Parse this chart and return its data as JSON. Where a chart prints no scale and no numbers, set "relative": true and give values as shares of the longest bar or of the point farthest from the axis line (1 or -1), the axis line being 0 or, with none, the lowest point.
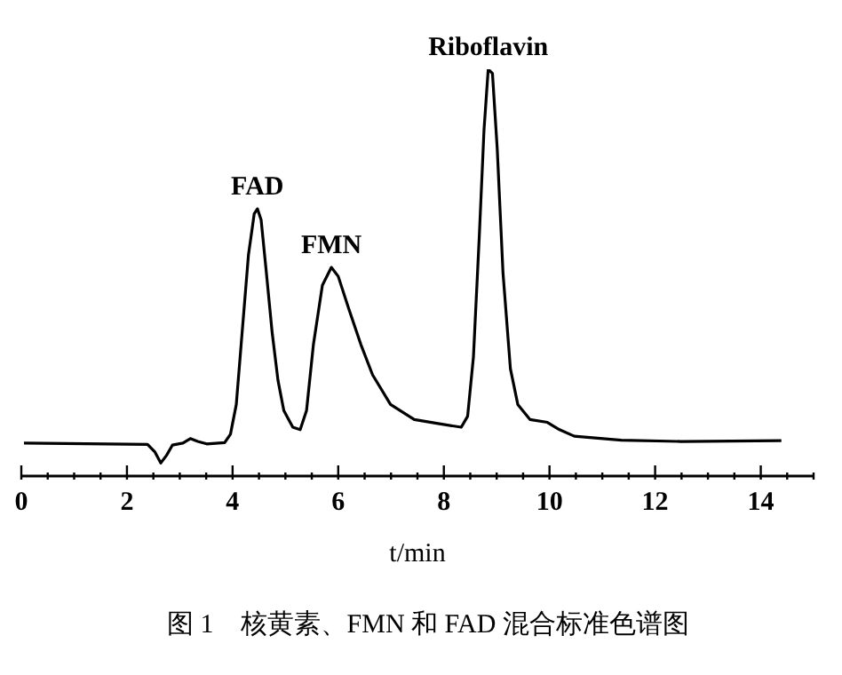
{
  "chart_data": {
    "type": "line",
    "xlabel": "t/min",
    "relative": true,
    "xlim": [
      0,
      15
    ],
    "xticks": [
      0,
      {
        "value": 0.5,
        "label": null
      },
      {
        "value": 1,
        "label": null
      },
      {
        "value": 1.5,
        "label": null
      },
      2,
      {
        "value": 2.5,
        "label": null
      },
      {
        "value": 3,
        "label": null
      },
      {
        "value": 3.5,
        "label": null
      },
      4,
      {
        "value": 4.5,
        "label": null
      },
      {
        "value": 5,
        "label": null
      },
      {
        "value": 5.5,
        "label": null
      },
      6,
      {
        "value": 6.5,
        "label": null
      },
      {
        "value": 7,
        "label": null
      },
      {
        "value": 7.5,
        "label": null
      },
      8,
      {
        "value": 8.5,
        "label": null
      },
      {
        "value": 9,
        "label": null
      },
      {
        "value": 9.5,
        "label": null
      },
      10,
      {
        "value": 10.5,
        "label": null
      },
      {
        "value": 11,
        "label": null
      },
      {
        "value": 11.5,
        "label": null
      },
      12,
      {
        "value": 12.5,
        "label": null
      },
      {
        "value": 13,
        "label": null
      },
      {
        "value": 13.5,
        "label": null
      },
      14,
      {
        "value": 14.5,
        "label": null
      },
      {
        "value": 15,
        "label": null
      }
    ],
    "x": [
      0.05,
      2.39,
      2.53,
      2.64,
      2.75,
      2.86,
      3.06,
      3.2,
      3.34,
      3.51,
      3.85,
      3.96,
      4.07,
      4.18,
      4.3,
      4.41,
      4.47,
      4.54,
      4.63,
      4.75,
      4.86,
      4.97,
      5.14,
      5.28,
      5.4,
      5.53,
      5.7,
      5.87,
      6.0,
      6.2,
      6.43,
      6.65,
      6.99,
      7.44,
      7.89,
      8.33,
      8.45,
      8.56,
      8.67,
      8.76,
      8.84,
      8.92,
      9.01,
      9.12,
      9.26,
      9.4,
      9.63,
      9.96,
      10.19,
      10.47,
      11.36,
      12.49,
      14.39
    ],
    "series": [
      {
        "color": "#000000",
        "values": [
          0.081,
          0.078,
          0.059,
          0.032,
          0.051,
          0.076,
          0.081,
          0.092,
          0.085,
          0.079,
          0.082,
          0.103,
          0.176,
          0.352,
          0.543,
          0.645,
          0.657,
          0.63,
          0.513,
          0.352,
          0.235,
          0.161,
          0.12,
          0.114,
          0.161,
          0.323,
          0.469,
          0.513,
          0.491,
          0.411,
          0.323,
          0.249,
          0.176,
          0.139,
          0.129,
          0.12,
          0.147,
          0.293,
          0.587,
          0.85,
          1.0,
          0.99,
          0.806,
          0.499,
          0.264,
          0.176,
          0.139,
          0.132,
          0.114,
          0.098,
          0.088,
          0.085,
          0.087
        ]
      }
    ],
    "grid": false,
    "legend": false,
    "marker": "none",
    "line_style": "solid",
    "annotations": [
      {
        "text": "FAD",
        "x": 4.47,
        "y": 0.657
      },
      {
        "text": "FMN",
        "x": 5.87,
        "y": 0.513
      },
      {
        "text": "Riboflavin",
        "x": 8.84,
        "y": 1.0
      },
      "图 1　核黄素、FMN 和 FAD 混合标准色谱图"
    ]
  }
}
